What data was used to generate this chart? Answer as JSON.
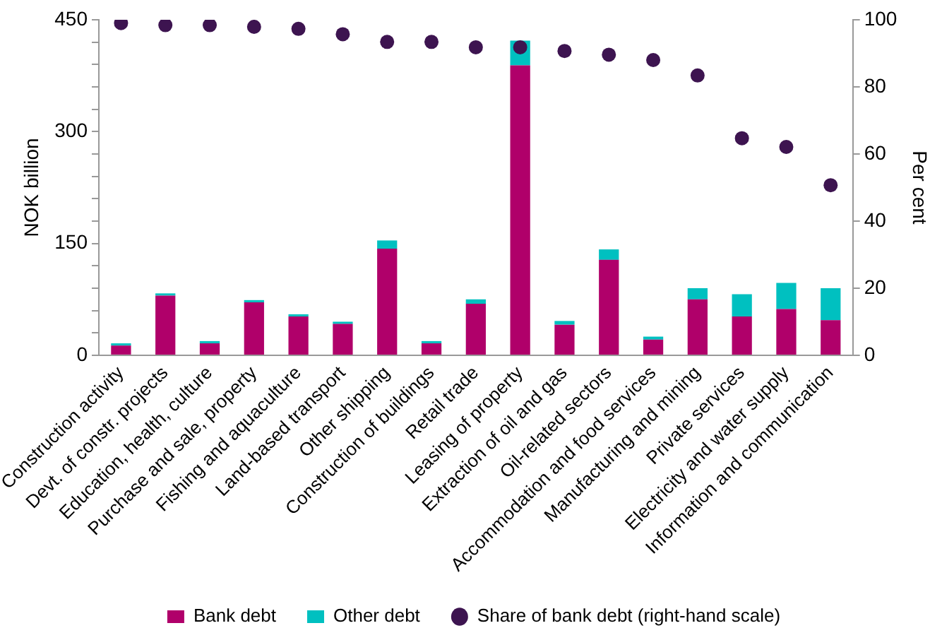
{
  "chart_data": {
    "type": "bar",
    "stacked": true,
    "ylabel": "NOK billion",
    "y2label": "Per cent",
    "categories": [
      "Construction activity",
      "Devt. of constr. projects",
      "Education, health, culture",
      "Purchase and sale, property",
      "Fishing and aquaculture",
      "Land-based transport",
      "Other shipping",
      "Construction of buildings",
      "Retail trade",
      "Leasing of property",
      "Extraction of oil and gas",
      "Oil-related sectors",
      "Accommodation and food services",
      "Manufacturing and mining",
      "Private services",
      "Electricity and water supply",
      "Information and communication"
    ],
    "series": [
      {
        "name": "Bank debt",
        "color": "#b0006a",
        "values": [
          13,
          80,
          16,
          71,
          52,
          42,
          143,
          16,
          69,
          389,
          41,
          128,
          21,
          75,
          52,
          62,
          47
        ]
      },
      {
        "name": "Other debt",
        "color": "#00c0c0",
        "values": [
          3,
          3,
          3,
          3,
          3,
          3,
          11,
          3,
          6,
          33,
          5,
          14,
          4,
          15,
          30,
          35,
          43
        ]
      },
      {
        "name": "Share of bank debt (right-hand scale)",
        "type": "scatter",
        "axis": "y2",
        "color": "#3d1450",
        "values": [
          99.0,
          98.4,
          98.4,
          97.9,
          97.3,
          95.7,
          93.4,
          93.4,
          91.8,
          91.8,
          90.7,
          89.6,
          88.0,
          83.4,
          64.7,
          62.1,
          50.7
        ]
      }
    ],
    "ylim": [
      0,
      450
    ],
    "yticks": [
      0,
      {
        "value": 30,
        "label": null
      },
      {
        "value": 60,
        "label": null
      },
      {
        "value": 90,
        "label": null
      },
      {
        "value": 120,
        "label": null
      },
      150,
      {
        "value": 180,
        "label": null
      },
      {
        "value": 210,
        "label": null
      },
      {
        "value": 240,
        "label": null
      },
      {
        "value": 270,
        "label": null
      },
      300,
      {
        "value": 330,
        "label": null
      },
      {
        "value": 360,
        "label": null
      },
      {
        "value": 390,
        "label": null
      },
      {
        "value": 420,
        "label": null
      },
      450
    ],
    "y2lim": [
      0,
      100
    ],
    "y2ticks": [
      0,
      20,
      40,
      60,
      80,
      100
    ],
    "grid": false,
    "legend": "bottom",
    "marker": "circle"
  }
}
